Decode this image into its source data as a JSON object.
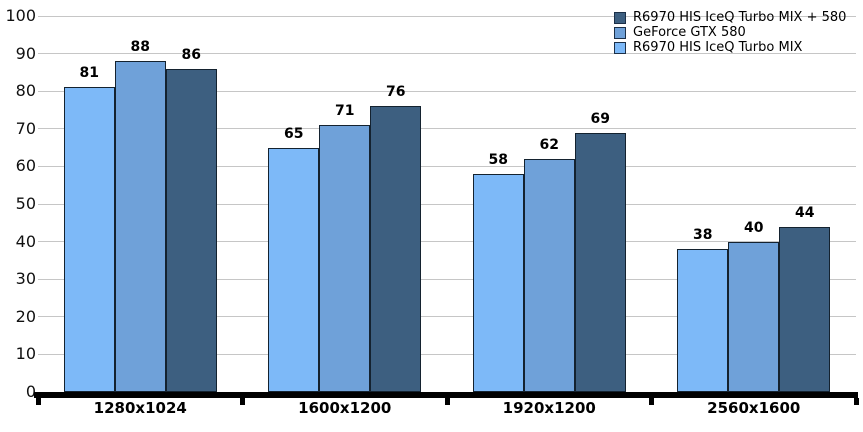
{
  "chart_data": {
    "type": "bar",
    "title": "",
    "categories": [
      "1280x1024",
      "1600x1200",
      "1920x1200",
      "2560x1600"
    ],
    "series": [
      {
        "name": "R6970 HIS IceQ Turbo MIX",
        "color": "#7db9f8",
        "values": [
          81,
          65,
          58,
          38
        ]
      },
      {
        "name": "GeForce GTX 580",
        "color": "#6fa1d9",
        "values": [
          88,
          71,
          62,
          40
        ]
      },
      {
        "name": "R6970 HIS IceQ Turbo MIX + 580",
        "color": "#3d5f80",
        "values": [
          86,
          76,
          69,
          44
        ]
      }
    ],
    "legend": {
      "position": "top-right",
      "order": [
        2,
        1,
        0
      ],
      "entries": [
        "R6970 HIS IceQ Turbo MIX + 580",
        "GeForce GTX 580",
        "R6970 HIS IceQ Turbo MIX"
      ]
    },
    "ylim": [
      0,
      100
    ],
    "ytick_step": 10,
    "yticks": [
      0,
      10,
      20,
      30,
      40,
      50,
      60,
      70,
      80,
      90,
      100
    ],
    "grid": true,
    "value_labels": true,
    "colors": {
      "gridline": "#c6c6c6",
      "axis": "#000000",
      "bar_border": "#14222f",
      "value_label": "#000000",
      "tick_label": "#111111"
    }
  }
}
